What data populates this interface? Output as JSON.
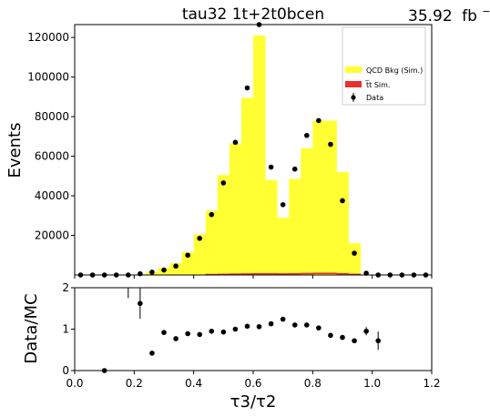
{
  "figure": {
    "title": "tau32  1t+2t0bcen",
    "lumi": "35.92",
    "lumi_unit": "fb",
    "lumi_exp": "−1"
  },
  "chart_data": [
    {
      "type": "bar",
      "panel": "main",
      "ylabel": "Events",
      "xlim": [
        0.0,
        1.2
      ],
      "ylim": [
        0,
        126500
      ],
      "yticks": [
        20000,
        40000,
        60000,
        80000,
        100000,
        120000
      ],
      "ytick_labels": [
        "20000",
        "40000",
        "60000",
        "80000",
        "100000",
        "120000"
      ],
      "bin_edges": [
        0.0,
        0.04,
        0.08,
        0.12,
        0.16,
        0.2,
        0.24,
        0.28,
        0.32,
        0.36,
        0.4,
        0.44,
        0.48,
        0.52,
        0.56,
        0.6,
        0.64,
        0.68,
        0.72,
        0.76,
        0.8,
        0.84,
        0.88,
        0.92,
        0.96,
        1.0,
        1.04,
        1.08,
        1.12,
        1.16,
        1.2
      ],
      "series": [
        {
          "name": "QCD Bkg (Sim.)",
          "color": "#ffff33",
          "style": "stacked-hist",
          "values": [
            0,
            0,
            0,
            0,
            0,
            0,
            1500,
            3500,
            6000,
            11500,
            20500,
            32500,
            50500,
            66500,
            89500,
            121000,
            48000,
            29000,
            48500,
            64000,
            78000,
            78000,
            52000,
            16000,
            0,
            0,
            0,
            0,
            0,
            0
          ]
        },
        {
          "name": "t̅t Sim.",
          "color": "#e8302d",
          "style": "stacked-hist",
          "values": [
            0,
            0,
            0,
            0,
            0,
            0,
            0,
            0,
            0,
            0,
            0,
            100,
            200,
            300,
            400,
            500,
            500,
            400,
            500,
            600,
            700,
            700,
            500,
            200,
            0,
            0,
            0,
            0,
            0,
            0
          ]
        },
        {
          "name": "Data",
          "color": "#000000",
          "style": "points",
          "x": [
            0.02,
            0.06,
            0.1,
            0.14,
            0.18,
            0.22,
            0.26,
            0.3,
            0.34,
            0.38,
            0.42,
            0.46,
            0.5,
            0.54,
            0.58,
            0.62,
            0.66,
            0.7,
            0.74,
            0.78,
            0.82,
            0.86,
            0.9,
            0.94,
            0.98,
            1.02,
            1.06,
            1.1,
            1.14,
            1.18
          ],
          "y": [
            0,
            0,
            0,
            0,
            0,
            600,
            1400,
            2500,
            4500,
            10000,
            18500,
            30500,
            46500,
            67000,
            94500,
            126500,
            54500,
            35500,
            53500,
            70500,
            78000,
            66000,
            37500,
            11000,
            900,
            0,
            0,
            0,
            0,
            0
          ]
        }
      ],
      "legend": {
        "placement": "top-right"
      }
    },
    {
      "type": "scatter",
      "panel": "ratio",
      "xlabel": "τ3/τ2",
      "ylabel": "Data/MC",
      "xlim": [
        0.0,
        1.2
      ],
      "ylim": [
        0,
        2
      ],
      "xticks": [
        0.0,
        0.2,
        0.4,
        0.6,
        0.8,
        1.0,
        1.2
      ],
      "xtick_labels": [
        "0.0",
        "0.2",
        "0.4",
        "0.6",
        "0.8",
        "1.0",
        "1.2"
      ],
      "yticks": [
        0,
        1,
        2
      ],
      "ytick_labels": [
        "0",
        "1",
        "2"
      ],
      "points": [
        {
          "x": 0.1,
          "y": 0.0,
          "err": 0.0
        },
        {
          "x": 0.18,
          "y": 2.0,
          "err": 0.25
        },
        {
          "x": 0.22,
          "y": 1.62,
          "err": 0.37
        },
        {
          "x": 0.26,
          "y": 0.42,
          "err": 0.0
        },
        {
          "x": 0.3,
          "y": 0.92,
          "err": 0.0
        },
        {
          "x": 0.34,
          "y": 0.77,
          "err": 0.0
        },
        {
          "x": 0.38,
          "y": 0.89,
          "err": 0.0
        },
        {
          "x": 0.42,
          "y": 0.87,
          "err": 0.0
        },
        {
          "x": 0.46,
          "y": 0.95,
          "err": 0.0
        },
        {
          "x": 0.5,
          "y": 0.93,
          "err": 0.0
        },
        {
          "x": 0.54,
          "y": 1.0,
          "err": 0.0
        },
        {
          "x": 0.58,
          "y": 1.07,
          "err": 0.0
        },
        {
          "x": 0.62,
          "y": 1.06,
          "err": 0.0
        },
        {
          "x": 0.66,
          "y": 1.13,
          "err": 0.0
        },
        {
          "x": 0.7,
          "y": 1.24,
          "err": 0.0
        },
        {
          "x": 0.74,
          "y": 1.1,
          "err": 0.0
        },
        {
          "x": 0.78,
          "y": 1.1,
          "err": 0.0
        },
        {
          "x": 0.82,
          "y": 1.03,
          "err": 0.0
        },
        {
          "x": 0.86,
          "y": 0.85,
          "err": 0.0
        },
        {
          "x": 0.9,
          "y": 0.8,
          "err": 0.0
        },
        {
          "x": 0.94,
          "y": 0.72,
          "err": 0.0
        },
        {
          "x": 0.98,
          "y": 0.95,
          "err": 0.1
        },
        {
          "x": 1.02,
          "y": 0.72,
          "err": 0.22
        }
      ]
    }
  ]
}
